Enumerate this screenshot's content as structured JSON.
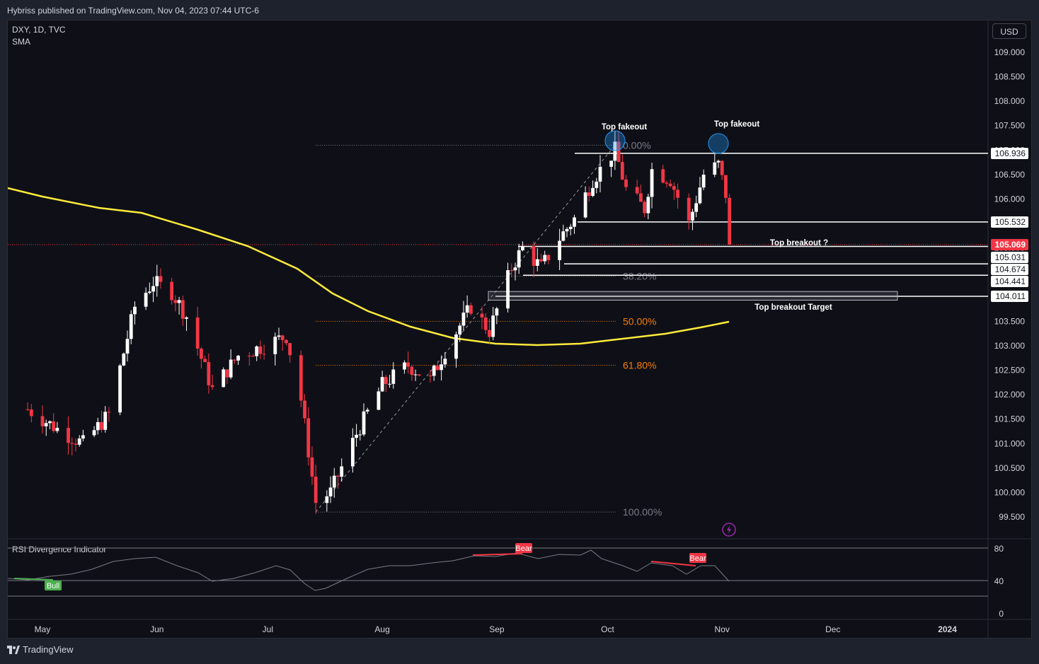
{
  "header": {
    "publisher_text": "Hybriss published on TradingView.com, Nov 04, 2023 07:44 UTC-6",
    "symbol_line": "DXY, 1D, TVC",
    "indicator_line": "SMA",
    "currency_button": "USD"
  },
  "footer": {
    "logo_text": "TradingView"
  },
  "colors": {
    "background": "#0f1017",
    "bull_candle": "#ffffff",
    "bear_candle": "#f23645",
    "sma": "#ffeb3b",
    "fib_orange": "#f57c00",
    "last_price_bg": "#f23645",
    "rsi_bull": "#4caf50",
    "rsi_bear": "#f23645"
  },
  "chart_data": {
    "type": "candlestick",
    "symbol": "DXY",
    "timeframe": "1D",
    "y_axis": {
      "ticks": [
        "109.000",
        "108.500",
        "108.000",
        "107.500",
        "107.000",
        "106.500",
        "106.000",
        "105.500",
        "105.000",
        "104.500",
        "104.000",
        "103.500",
        "103.000",
        "102.500",
        "102.000",
        "101.500",
        "101.000",
        "100.500",
        "100.000",
        "99.500"
      ],
      "ylim": [
        99.2,
        109.45
      ]
    },
    "x_axis": {
      "ticks": [
        "May",
        "Jun",
        "Jul",
        "Aug",
        "Sep",
        "Oct",
        "Nov",
        "Dec",
        "2024"
      ]
    },
    "key_points": [
      {
        "date": "2023-04-27",
        "close": 101.5
      },
      {
        "date": "2023-05-31",
        "close": 104.2
      },
      {
        "date": "2023-06-16",
        "close": 102.3
      },
      {
        "date": "2023-07-06",
        "close": 103.0
      },
      {
        "date": "2023-07-14",
        "close": 99.8
      },
      {
        "date": "2023-08-25",
        "close": 104.2
      },
      {
        "date": "2023-10-03",
        "close": 107.1
      },
      {
        "date": "2023-10-30",
        "close": 106.6
      },
      {
        "date": "2023-11-03",
        "close": 105.07
      }
    ],
    "sma_approx": [
      {
        "date": "2023-04-27",
        "value": 106.3
      },
      {
        "date": "2023-06-01",
        "value": 105.5
      },
      {
        "date": "2023-07-06",
        "value": 104.8
      },
      {
        "date": "2023-08-10",
        "value": 103.8
      },
      {
        "date": "2023-09-01",
        "value": 103.1
      },
      {
        "date": "2023-09-18",
        "value": 103.02
      },
      {
        "date": "2023-10-15",
        "value": 103.2
      },
      {
        "date": "2023-11-03",
        "value": 103.5
      }
    ],
    "price_labels": [
      {
        "value": "106.936",
        "style": "white"
      },
      {
        "value": "105.532",
        "style": "white"
      },
      {
        "value": "105.069",
        "style": "last"
      },
      {
        "value": "105.031",
        "style": "white"
      },
      {
        "value": "104.674",
        "style": "white"
      },
      {
        "value": "104.441",
        "style": "white"
      },
      {
        "value": "104.011",
        "style": "white"
      }
    ],
    "fibonacci": [
      {
        "label": "0.00%",
        "price": 107.1,
        "color": "#787b86"
      },
      {
        "label": "38.20%",
        "price": 104.42,
        "color": "#787b86"
      },
      {
        "label": "50.00%",
        "price": 103.5,
        "color": "#f57c00"
      },
      {
        "label": "61.80%",
        "price": 102.6,
        "color": "#f57c00"
      },
      {
        "label": "100.00%",
        "price": 99.6,
        "color": "#787b86"
      }
    ],
    "annotations": [
      {
        "text": "Top fakeout"
      },
      {
        "text": "Top fakeout"
      },
      {
        "text": "Top breakout ?"
      },
      {
        "text": "Top breakout Target"
      }
    ],
    "rsi_panel": {
      "title": "RSI Divergence Indicator",
      "ticks": [
        "80",
        "40",
        "0"
      ],
      "levels": [
        70,
        30
      ],
      "signals": [
        {
          "label": "Bull",
          "type": "bull"
        },
        {
          "label": "Bear",
          "type": "bear"
        },
        {
          "label": "Bear",
          "type": "bear"
        }
      ]
    }
  }
}
